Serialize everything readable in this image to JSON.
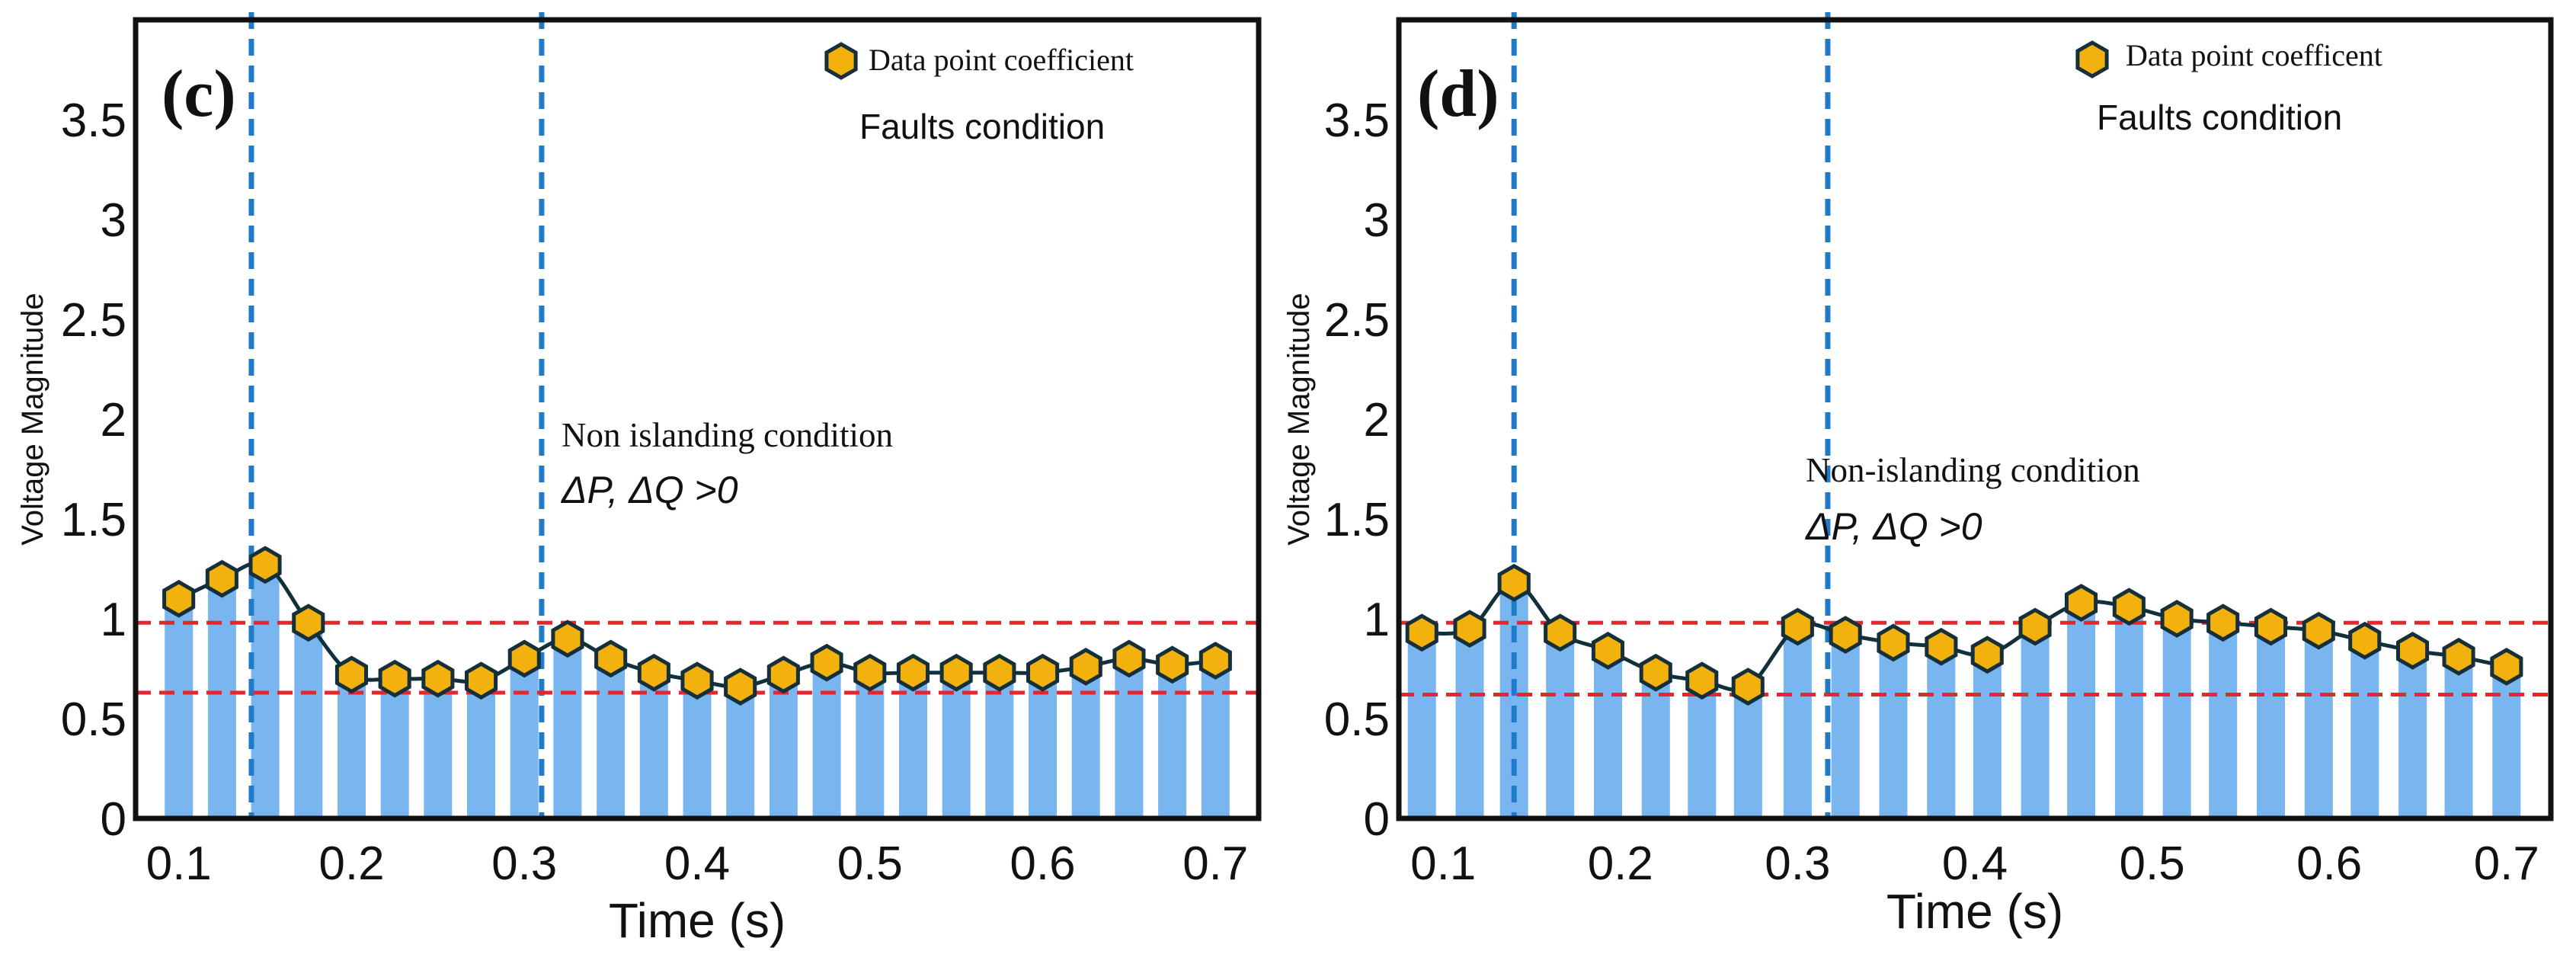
{
  "chart_data": [
    {
      "type": "bar",
      "panel_label": "(c)",
      "xlabel": "Time (s)",
      "ylabel": "Voltage Magnitude",
      "xlim": [
        0.075,
        0.725
      ],
      "ylim": [
        0,
        4
      ],
      "x_ticks": [
        "0.1",
        "0.2",
        "0.3",
        "0.4",
        "0.5",
        "0.6",
        "0.7"
      ],
      "x_tick_values": [
        0.1,
        0.2,
        0.3,
        0.4,
        0.5,
        0.6,
        0.7
      ],
      "y_ticks": [
        "0",
        "0.5",
        "1",
        "1.5",
        "2",
        "2.5",
        "3",
        "3.5"
      ],
      "y_tick_values": [
        0,
        0.5,
        1,
        1.5,
        2,
        2.5,
        3,
        3.5
      ],
      "legend": "Data point coefficient",
      "condition_text": "Faults condition",
      "annotation_line1": "Non islanding condition",
      "annotation_line2": "ΔP, ΔQ >0",
      "vlines": [
        0.142,
        0.31
      ],
      "hlines": [
        0.98,
        0.63
      ],
      "x": [
        0.1,
        0.125,
        0.15,
        0.175,
        0.2,
        0.225,
        0.25,
        0.275,
        0.3,
        0.325,
        0.35,
        0.375,
        0.4,
        0.425,
        0.45,
        0.475,
        0.5,
        0.525,
        0.55,
        0.575,
        0.6,
        0.625,
        0.65,
        0.675,
        0.7
      ],
      "values": [
        1.1,
        1.2,
        1.27,
        0.98,
        0.72,
        0.7,
        0.7,
        0.69,
        0.8,
        0.9,
        0.8,
        0.73,
        0.69,
        0.66,
        0.72,
        0.78,
        0.73,
        0.73,
        0.73,
        0.73,
        0.73,
        0.76,
        0.8,
        0.77,
        0.79
      ]
    },
    {
      "type": "bar",
      "panel_label": "(d)",
      "xlabel": "Time (s)",
      "ylabel": "Voltage Magnitude",
      "xlim": [
        0.075,
        0.725
      ],
      "ylim": [
        0,
        4
      ],
      "x_ticks": [
        "0.1",
        "0.2",
        "0.3",
        "0.4",
        "0.5",
        "0.6",
        "0.7"
      ],
      "x_tick_values": [
        0.1,
        0.2,
        0.3,
        0.4,
        0.5,
        0.6,
        0.7
      ],
      "y_ticks": [
        "0",
        "0.5",
        "1",
        "1.5",
        "2",
        "2.5",
        "3",
        "3.5"
      ],
      "y_tick_values": [
        0,
        0.5,
        1,
        1.5,
        2,
        2.5,
        3,
        3.5
      ],
      "legend": "Data point coefficent",
      "condition_text": "Faults condition",
      "annotation_line1": "Non-islanding condition",
      "annotation_line2": "ΔP, ΔQ >0",
      "vlines": [
        0.14,
        0.317
      ],
      "hlines": [
        0.98,
        0.62
      ],
      "x": [
        0.088,
        0.115,
        0.14,
        0.166,
        0.193,
        0.22,
        0.246,
        0.272,
        0.3,
        0.327,
        0.354,
        0.381,
        0.407,
        0.434,
        0.46,
        0.487,
        0.514,
        0.54,
        0.567,
        0.594,
        0.62,
        0.647,
        0.673,
        0.7
      ],
      "values": [
        0.93,
        0.95,
        1.18,
        0.93,
        0.84,
        0.73,
        0.69,
        0.66,
        0.96,
        0.92,
        0.88,
        0.86,
        0.82,
        0.96,
        1.08,
        1.06,
        1.0,
        0.98,
        0.96,
        0.94,
        0.89,
        0.84,
        0.81,
        0.76
      ]
    }
  ]
}
